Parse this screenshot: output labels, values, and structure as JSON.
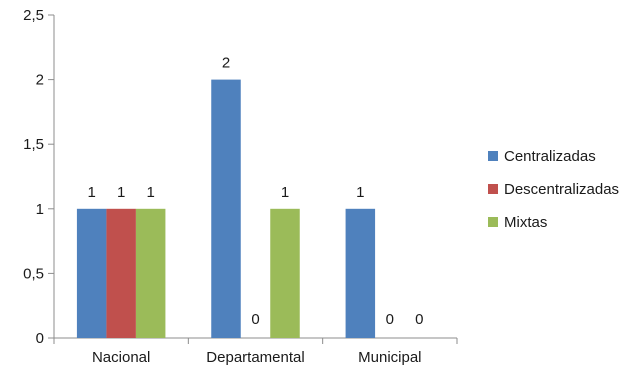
{
  "chart_data": {
    "type": "bar",
    "categories": [
      "Nacional",
      "Departamental",
      "Municipal"
    ],
    "series": [
      {
        "name": "Centralizadas",
        "values": [
          1,
          2,
          1
        ],
        "color": "#4F81BD"
      },
      {
        "name": "Descentralizadas",
        "values": [
          1,
          0,
          0
        ],
        "color": "#C0504D"
      },
      {
        "name": "Mixtas",
        "values": [
          1,
          1,
          0
        ],
        "color": "#9BBB59"
      }
    ],
    "y_ticks": [
      "0",
      "0,5",
      "1",
      "1,5",
      "2",
      "2,5"
    ],
    "ylim": [
      0,
      2.5
    ],
    "grid": false,
    "legend_position": "right",
    "data_labels": [
      [
        "1",
        "2",
        "1"
      ],
      [
        "1",
        "0",
        "0"
      ],
      [
        "1",
        "1",
        "0"
      ]
    ],
    "title": "",
    "xlabel": "",
    "ylabel": ""
  }
}
